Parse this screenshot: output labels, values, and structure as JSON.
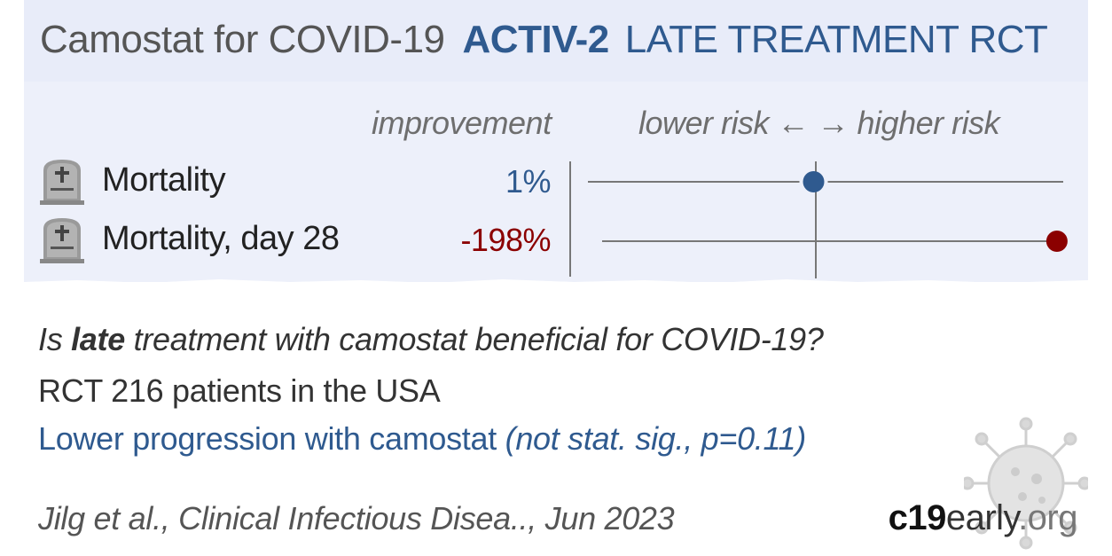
{
  "header": {
    "title": "Camostat for COVID-19",
    "trial": "ACTIV-2",
    "stage": "LATE TREATMENT RCT"
  },
  "columns": {
    "improvement": "improvement",
    "risk_axis": "lower risk ← → higher risk"
  },
  "chart_data": {
    "type": "forest",
    "rows": [
      {
        "outcome": "Mortality",
        "improvement_label": "1%",
        "relative_risk": 0.99,
        "color": "#2f5a8f"
      },
      {
        "outcome": "Mortality, day 28",
        "improvement_label": "-198%",
        "relative_risk": 2.98,
        "color": "#8b0000"
      }
    ],
    "null_value": 1
  },
  "summary": {
    "q_prefix": "Is ",
    "q_bold": "late",
    "q_suffix": " treatment with camostat beneficial for COVID-19?",
    "details": "RCT 216 patients in the USA",
    "result_prefix": "Lower progression with camostat ",
    "result_italic": "(not stat. sig., p=0.11)",
    "citation": "Jilg et al., Clinical Infectious Disea.., Jun 2023"
  },
  "brand": {
    "part1": "c19",
    "part2": "early",
    "part3": ".org"
  },
  "colors": {
    "header_bg": "#e8ecf9",
    "accent": "#2f5a8f",
    "harm": "#8b0000"
  }
}
